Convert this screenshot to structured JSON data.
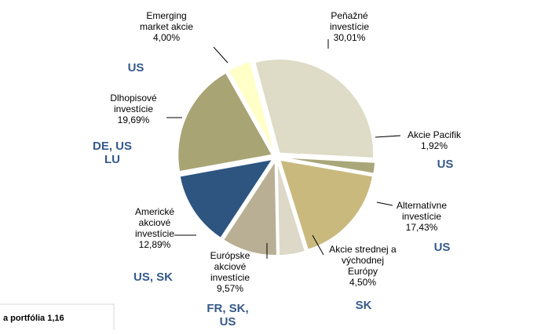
{
  "chart_data": {
    "type": "pie",
    "categories": [
      [
        "Peňažné",
        "investície"
      ],
      [
        "Akcie Pacifik"
      ],
      [
        "Alternatívne",
        "investície"
      ],
      [
        "Akcie strednej a",
        "východnej",
        "Európy"
      ],
      [
        "Európske",
        "akciové",
        "investície"
      ],
      [
        "Americké",
        "akciové",
        "investície"
      ],
      [
        "Dlhopisové",
        "investície"
      ],
      [
        "Emerging",
        "market akcie"
      ]
    ],
    "values": [
      30.01,
      1.92,
      17.43,
      4.5,
      9.57,
      12.89,
      19.69,
      4.0
    ],
    "value_labels": [
      "30,01%",
      "1,92%",
      "17,43%",
      "4,50%",
      "9,57%",
      "12,89%",
      "19,69%",
      "4,00%"
    ],
    "colors": [
      "#dedbc6",
      "#a9a77a",
      "#c9b97d",
      "#ddd8c8",
      "#b9af95",
      "#2e5580",
      "#a8a474",
      "#ffffc8"
    ],
    "annotations": [
      [],
      [
        "US"
      ],
      [
        "US"
      ],
      [
        "SK"
      ],
      [
        "FR, SK,",
        "US"
      ],
      [
        "US, SK"
      ],
      [
        "DE, US",
        "LU"
      ],
      [
        "US"
      ]
    ],
    "footer_note": "a portfólia 1,16"
  }
}
